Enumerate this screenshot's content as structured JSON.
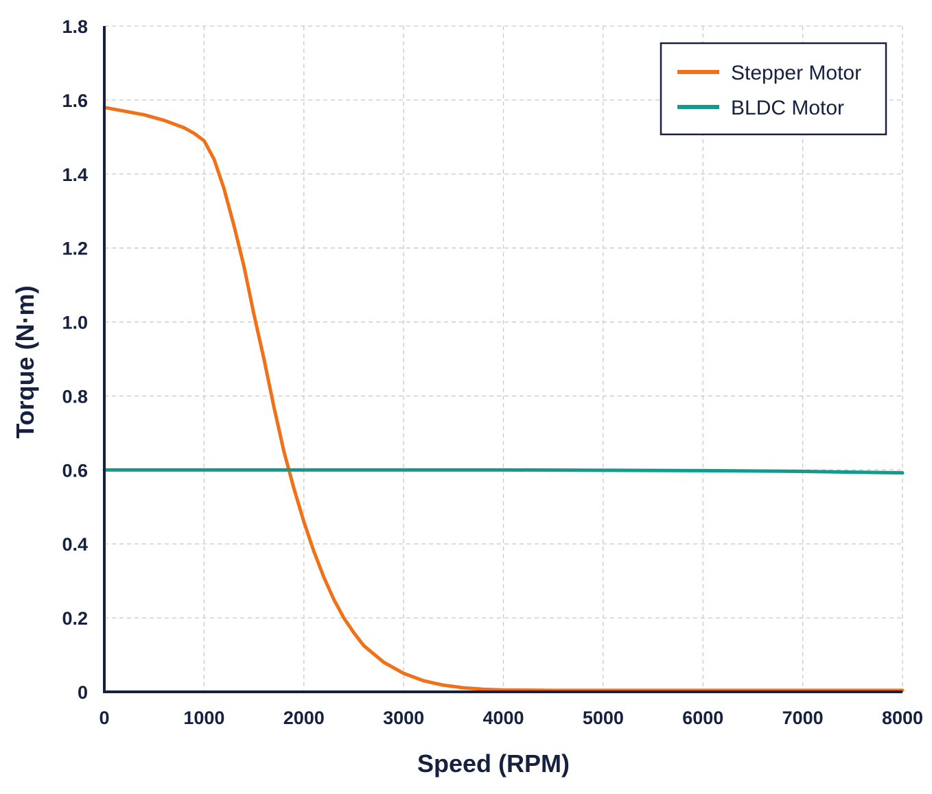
{
  "chart_data": {
    "type": "line",
    "title": "",
    "xlabel": "Speed (RPM)",
    "ylabel": "Torque (N·m)",
    "xlim": [
      0,
      8000
    ],
    "ylim": [
      0,
      1.8
    ],
    "x_ticks": [
      0,
      1000,
      2000,
      3000,
      4000,
      5000,
      6000,
      7000,
      8000
    ],
    "y_ticks": [
      0,
      0.2,
      0.4,
      0.6,
      0.8,
      1.0,
      1.2,
      1.4,
      1.6,
      1.8
    ],
    "x_tick_labels": [
      "0",
      "1000",
      "2000",
      "3000",
      "4000",
      "5000",
      "6000",
      "7000",
      "8000"
    ],
    "y_tick_labels": [
      "0",
      "0.2",
      "0.4",
      "0.6",
      "0.8",
      "1.0",
      "1.2",
      "1.4",
      "1.6",
      "1.8"
    ],
    "grid": true,
    "legend": "top-right",
    "series": [
      {
        "name": "Stepper Motor",
        "color": "#f07117",
        "x": [
          0,
          200,
          400,
          600,
          800,
          900,
          1000,
          1100,
          1200,
          1300,
          1400,
          1500,
          1600,
          1700,
          1800,
          1900,
          2000,
          2100,
          2200,
          2300,
          2400,
          2500,
          2600,
          2800,
          3000,
          3200,
          3400,
          3600,
          3800,
          4000,
          4500,
          5000,
          6000,
          7000,
          8000
        ],
        "y": [
          1.58,
          1.57,
          1.56,
          1.545,
          1.525,
          1.51,
          1.49,
          1.44,
          1.36,
          1.26,
          1.15,
          1.02,
          0.9,
          0.77,
          0.65,
          0.55,
          0.46,
          0.38,
          0.31,
          0.25,
          0.2,
          0.16,
          0.125,
          0.08,
          0.05,
          0.03,
          0.018,
          0.011,
          0.007,
          0.005,
          0.004,
          0.004,
          0.004,
          0.004,
          0.004
        ]
      },
      {
        "name": "BLDC Motor",
        "color": "#119a8e",
        "x": [
          0,
          1000,
          2000,
          3000,
          4000,
          5000,
          6000,
          7000,
          7500,
          8000
        ],
        "y": [
          0.6,
          0.6,
          0.6,
          0.6,
          0.6,
          0.599,
          0.598,
          0.596,
          0.594,
          0.592
        ]
      }
    ]
  }
}
